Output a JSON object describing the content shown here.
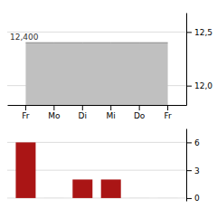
{
  "chart_data": [
    {
      "type": "area",
      "categories": [
        "Fr",
        "Mo",
        "Di",
        "Mi",
        "Do",
        "Fr"
      ],
      "values": [
        12.4,
        12.4,
        12.4,
        12.4,
        12.4,
        12.4
      ],
      "color": "#c0c0c0",
      "ylim": [
        11.82,
        12.68
      ],
      "yticks": [
        {
          "value": 12.0,
          "label": "12,0"
        },
        {
          "value": 12.5,
          "label": "12,5"
        }
      ],
      "annotations": [
        {
          "text": "12,400",
          "y": 12.4
        }
      ],
      "grid": true
    },
    {
      "type": "bar",
      "categories": [
        "Fr",
        "Mo",
        "Di",
        "Mi",
        "Do",
        "Fr"
      ],
      "values": [
        6,
        0.1,
        2,
        2,
        0.1,
        0.1
      ],
      "colors": [
        "#aa1515",
        "#e8e8e8",
        "#aa1515",
        "#aa1515",
        "#e8e8e8",
        "#e8e8e8"
      ],
      "ylim": [
        -0.3,
        7.5
      ],
      "yticks": [
        0,
        3,
        6
      ],
      "tick_labels": "y",
      "grid": true
    }
  ]
}
